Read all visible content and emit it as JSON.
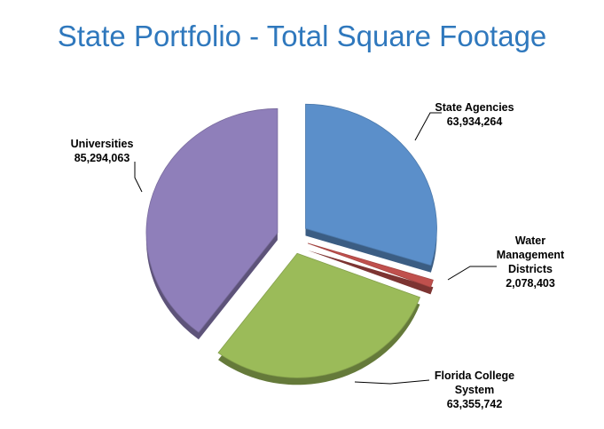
{
  "chart_data": {
    "type": "pie",
    "title": "State Portfolio - Total Square Footage",
    "categories": [
      "State Agencies",
      "Water Management Districts",
      "Florida College System",
      "Universities"
    ],
    "values": [
      63934264,
      2078403,
      63355742,
      85294063
    ],
    "value_labels": [
      "63,934,264",
      "2,078,403",
      "63,355,742",
      "85,294,063"
    ],
    "colors": [
      "#5b8fca",
      "#c0504d",
      "#9bbb59",
      "#8f7fba"
    ]
  }
}
